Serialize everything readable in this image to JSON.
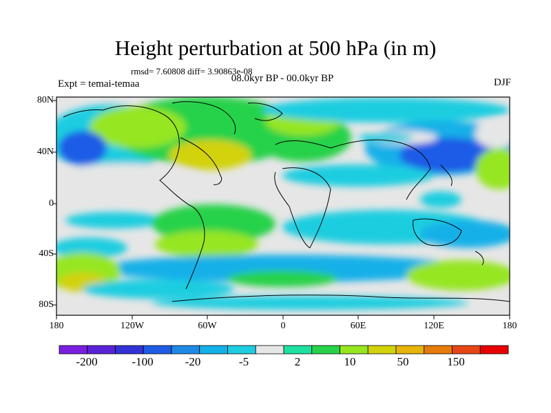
{
  "title": "Height perturbation at 500 hPa (in m)",
  "stats": "rmsd= 7.60808 diff= 3.90863e-08",
  "period": "08.0kyr BP - 00.0kyr BP",
  "experiment": "Expt = temai-temaa",
  "season": "DJF",
  "axes": {
    "lat_labels": [
      "80N",
      "40N",
      "0",
      "40S",
      "80S"
    ],
    "lon_labels": [
      "180",
      "120W",
      "60W",
      "0",
      "60E",
      "120E",
      "180"
    ]
  },
  "colorbar": {
    "colors": [
      "#7a1fe0",
      "#5a22d8",
      "#3232d6",
      "#1e5ce6",
      "#1f8ae6",
      "#14b0e8",
      "#1fcde0",
      "#e6e6e6",
      "#1ee0a0",
      "#28d24a",
      "#96e620",
      "#d2d20a",
      "#e6b40a",
      "#e67a0a",
      "#e64614",
      "#e60000"
    ],
    "labels": [
      "-200",
      "-100",
      "-20",
      "-5",
      "2",
      "10",
      "50",
      "150"
    ]
  }
}
